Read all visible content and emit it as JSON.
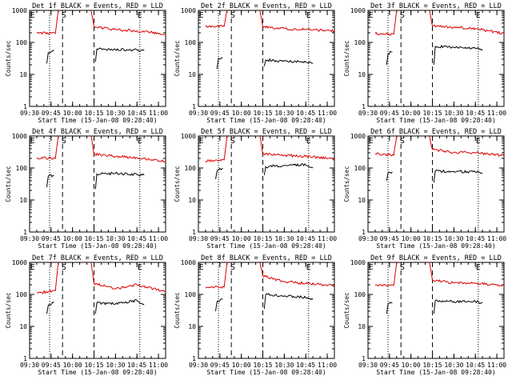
{
  "figure": {
    "xlabel": "Start Time (15-Jan-08 09:28:40)",
    "ylabel": "Counts/sec",
    "x_ticks": [
      "09:30",
      "09:45",
      "10:00",
      "10:15",
      "10:30",
      "10:45",
      "11:00"
    ],
    "y_ticks": [
      "1",
      "10",
      "100",
      "1000"
    ],
    "markers": [
      "E",
      "S",
      "E"
    ],
    "colors": {
      "events": "#000000",
      "lld": "#dd0000",
      "axes": "#000000"
    }
  },
  "chart_data": [
    {
      "type": "line",
      "title": "Det 1f BLACK = Events, RED = LLD",
      "y_scale": "log",
      "ylim": [
        1,
        1000
      ],
      "xlim": [
        "09:30",
        "11:05"
      ],
      "series": [
        {
          "name": "BLACK = Events",
          "segments": [
            [
              [
                "09:42",
                22
              ],
              [
                "09:43",
                48
              ],
              [
                "09:47",
                55
              ]
            ],
            [
              [
                "10:16",
                25
              ],
              [
                "10:17",
                62
              ],
              [
                "10:30",
                60
              ],
              [
                "10:45",
                58
              ],
              [
                "10:50",
                55
              ]
            ]
          ]
        },
        {
          "name": "RED = LLD",
          "segments": [
            [
              [
                "09:35",
                200
              ],
              [
                "09:48",
                190
              ],
              [
                "09:50",
                1000
              ]
            ],
            [
              [
                "10:13",
                1000
              ],
              [
                "10:15",
                310
              ],
              [
                "10:30",
                250
              ],
              [
                "10:45",
                230
              ],
              [
                "11:05",
                180
              ]
            ]
          ]
        }
      ]
    },
    {
      "type": "line",
      "title": "Det 2f BLACK = Events, RED = LLD",
      "y_scale": "log",
      "ylim": [
        1,
        1000
      ],
      "xlim": [
        "09:30",
        "11:05"
      ],
      "series": [
        {
          "name": "BLACK = Events",
          "segments": [
            [
              [
                "09:43",
                15
              ],
              [
                "09:44",
                32
              ],
              [
                "09:47",
                33
              ]
            ],
            [
              [
                "10:16",
                18
              ],
              [
                "10:17",
                28
              ],
              [
                "10:30",
                26
              ],
              [
                "10:45",
                24
              ],
              [
                "10:50",
                22
              ]
            ]
          ]
        },
        {
          "name": "RED = LLD",
          "segments": [
            [
              [
                "09:35",
                310
              ],
              [
                "09:48",
                320
              ],
              [
                "09:50",
                1000
              ]
            ],
            [
              [
                "10:13",
                1000
              ],
              [
                "10:15",
                310
              ],
              [
                "10:30",
                270
              ],
              [
                "10:45",
                250
              ],
              [
                "11:05",
                230
              ]
            ]
          ]
        }
      ]
    },
    {
      "type": "line",
      "title": "Det 3f BLACK = Events, RED = LLD",
      "y_scale": "log",
      "ylim": [
        1,
        1000
      ],
      "xlim": [
        "09:30",
        "11:05"
      ],
      "series": [
        {
          "name": "BLACK = Events",
          "segments": [
            [
              [
                "09:43",
                20
              ],
              [
                "09:44",
                45
              ],
              [
                "09:47",
                50
              ]
            ],
            [
              [
                "10:16",
                20
              ],
              [
                "10:17",
                75
              ],
              [
                "10:30",
                70
              ],
              [
                "10:45",
                65
              ],
              [
                "10:50",
                60
              ]
            ]
          ]
        },
        {
          "name": "RED = LLD",
          "segments": [
            [
              [
                "09:35",
                190
              ],
              [
                "09:48",
                180
              ],
              [
                "09:50",
                1000
              ]
            ],
            [
              [
                "10:13",
                1000
              ],
              [
                "10:15",
                330
              ],
              [
                "10:30",
                300
              ],
              [
                "10:45",
                270
              ],
              [
                "11:05",
                190
              ]
            ]
          ]
        }
      ]
    },
    {
      "type": "line",
      "title": "Det 4f BLACK = Events, RED = LLD",
      "y_scale": "log",
      "ylim": [
        1,
        1000
      ],
      "xlim": [
        "09:30",
        "11:05"
      ],
      "series": [
        {
          "name": "BLACK = Events",
          "segments": [
            [
              [
                "09:42",
                25
              ],
              [
                "09:43",
                55
              ],
              [
                "09:47",
                60
              ]
            ],
            [
              [
                "10:16",
                22
              ],
              [
                "10:17",
                65
              ],
              [
                "10:30",
                68
              ],
              [
                "10:45",
                62
              ],
              [
                "10:50",
                60
              ]
            ]
          ]
        },
        {
          "name": "RED = LLD",
          "segments": [
            [
              [
                "09:35",
                210
              ],
              [
                "09:48",
                200
              ],
              [
                "09:50",
                1000
              ]
            ],
            [
              [
                "10:13",
                1000
              ],
              [
                "10:15",
                270
              ],
              [
                "10:30",
                230
              ],
              [
                "10:45",
                210
              ],
              [
                "11:05",
                160
              ]
            ]
          ]
        }
      ]
    },
    {
      "type": "line",
      "title": "Det 5f BLACK = Events, RED = LLD",
      "y_scale": "log",
      "ylim": [
        1,
        1000
      ],
      "xlim": [
        "09:30",
        "11:05"
      ],
      "series": [
        {
          "name": "BLACK = Events",
          "segments": [
            [
              [
                "09:42",
                45
              ],
              [
                "09:43",
                80
              ],
              [
                "09:47",
                100
              ]
            ],
            [
              [
                "10:16",
                60
              ],
              [
                "10:17",
                110
              ],
              [
                "10:30",
                120
              ],
              [
                "10:45",
                125
              ],
              [
                "10:50",
                100
              ]
            ]
          ]
        },
        {
          "name": "RED = LLD",
          "segments": [
            [
              [
                "09:35",
                160
              ],
              [
                "09:48",
                180
              ],
              [
                "09:50",
                1000
              ]
            ],
            [
              [
                "10:13",
                1000
              ],
              [
                "10:15",
                270
              ],
              [
                "10:30",
                250
              ],
              [
                "10:45",
                230
              ],
              [
                "11:05",
                190
              ]
            ]
          ]
        }
      ]
    },
    {
      "type": "line",
      "title": "Det 6f BLACK = Events, RED = LLD",
      "y_scale": "log",
      "ylim": [
        1,
        1000
      ],
      "xlim": [
        "09:30",
        "11:05"
      ],
      "series": [
        {
          "name": "BLACK = Events",
          "segments": [
            [
              [
                "09:43",
                40
              ],
              [
                "09:44",
                70
              ],
              [
                "09:47",
                75
              ]
            ],
            [
              [
                "10:16",
                35
              ],
              [
                "10:17",
                80
              ],
              [
                "10:30",
                78
              ],
              [
                "10:45",
                75
              ],
              [
                "10:50",
                70
              ]
            ]
          ]
        },
        {
          "name": "RED = LLD",
          "segments": [
            [
              [
                "09:35",
                280
              ],
              [
                "09:48",
                250
              ],
              [
                "09:50",
                1000
              ]
            ],
            [
              [
                "10:13",
                1000
              ],
              [
                "10:15",
                380
              ],
              [
                "10:30",
                310
              ],
              [
                "10:45",
                300
              ],
              [
                "11:05",
                250
              ]
            ]
          ]
        }
      ]
    },
    {
      "type": "line",
      "title": "Det 7f BLACK = Events, RED = LLD",
      "y_scale": "log",
      "ylim": [
        1,
        1000
      ],
      "xlim": [
        "09:30",
        "11:05"
      ],
      "series": [
        {
          "name": "BLACK = Events",
          "segments": [
            [
              [
                "09:42",
                25
              ],
              [
                "09:43",
                45
              ],
              [
                "09:47",
                55
              ]
            ],
            [
              [
                "10:16",
                25
              ],
              [
                "10:17",
                55
              ],
              [
                "10:30",
                50
              ],
              [
                "10:45",
                65
              ],
              [
                "10:50",
                50
              ]
            ]
          ]
        },
        {
          "name": "RED = LLD",
          "segments": [
            [
              [
                "09:35",
                110
              ],
              [
                "09:48",
                130
              ],
              [
                "09:50",
                1000
              ]
            ],
            [
              [
                "10:13",
                1000
              ],
              [
                "10:15",
                220
              ],
              [
                "10:30",
                150
              ],
              [
                "10:45",
                200
              ],
              [
                "11:05",
                120
              ]
            ]
          ]
        }
      ]
    },
    {
      "type": "line",
      "title": "Det 8f BLACK = Events, RED = LLD",
      "y_scale": "log",
      "ylim": [
        1,
        1000
      ],
      "xlim": [
        "09:30",
        "11:05"
      ],
      "series": [
        {
          "name": "BLACK = Events",
          "segments": [
            [
              [
                "09:42",
                30
              ],
              [
                "09:43",
                60
              ],
              [
                "09:47",
                70
              ]
            ],
            [
              [
                "10:16",
                35
              ],
              [
                "10:17",
                100
              ],
              [
                "10:30",
                90
              ],
              [
                "10:45",
                80
              ],
              [
                "10:50",
                70
              ]
            ]
          ]
        },
        {
          "name": "RED = LLD",
          "segments": [
            [
              [
                "09:35",
                160
              ],
              [
                "09:48",
                170
              ],
              [
                "09:50",
                1000
              ]
            ],
            [
              [
                "10:13",
                1000
              ],
              [
                "10:15",
                380
              ],
              [
                "10:30",
                250
              ],
              [
                "10:45",
                220
              ],
              [
                "11:05",
                190
              ]
            ]
          ]
        }
      ]
    },
    {
      "type": "line",
      "title": "Det 9f BLACK = Events, RED = LLD",
      "y_scale": "log",
      "ylim": [
        1,
        1000
      ],
      "xlim": [
        "09:30",
        "11:05"
      ],
      "series": [
        {
          "name": "BLACK = Events",
          "segments": [
            [
              [
                "09:43",
                25
              ],
              [
                "09:44",
                50
              ],
              [
                "09:47",
                55
              ]
            ],
            [
              [
                "10:16",
                25
              ],
              [
                "10:17",
                65
              ],
              [
                "10:30",
                60
              ],
              [
                "10:45",
                60
              ],
              [
                "10:50",
                55
              ]
            ]
          ]
        },
        {
          "name": "RED = LLD",
          "segments": [
            [
              [
                "09:35",
                190
              ],
              [
                "09:48",
                190
              ],
              [
                "09:50",
                1000
              ]
            ],
            [
              [
                "10:13",
                1000
              ],
              [
                "10:15",
                280
              ],
              [
                "10:30",
                230
              ],
              [
                "10:45",
                220
              ],
              [
                "11:05",
                190
              ]
            ]
          ]
        }
      ]
    }
  ]
}
